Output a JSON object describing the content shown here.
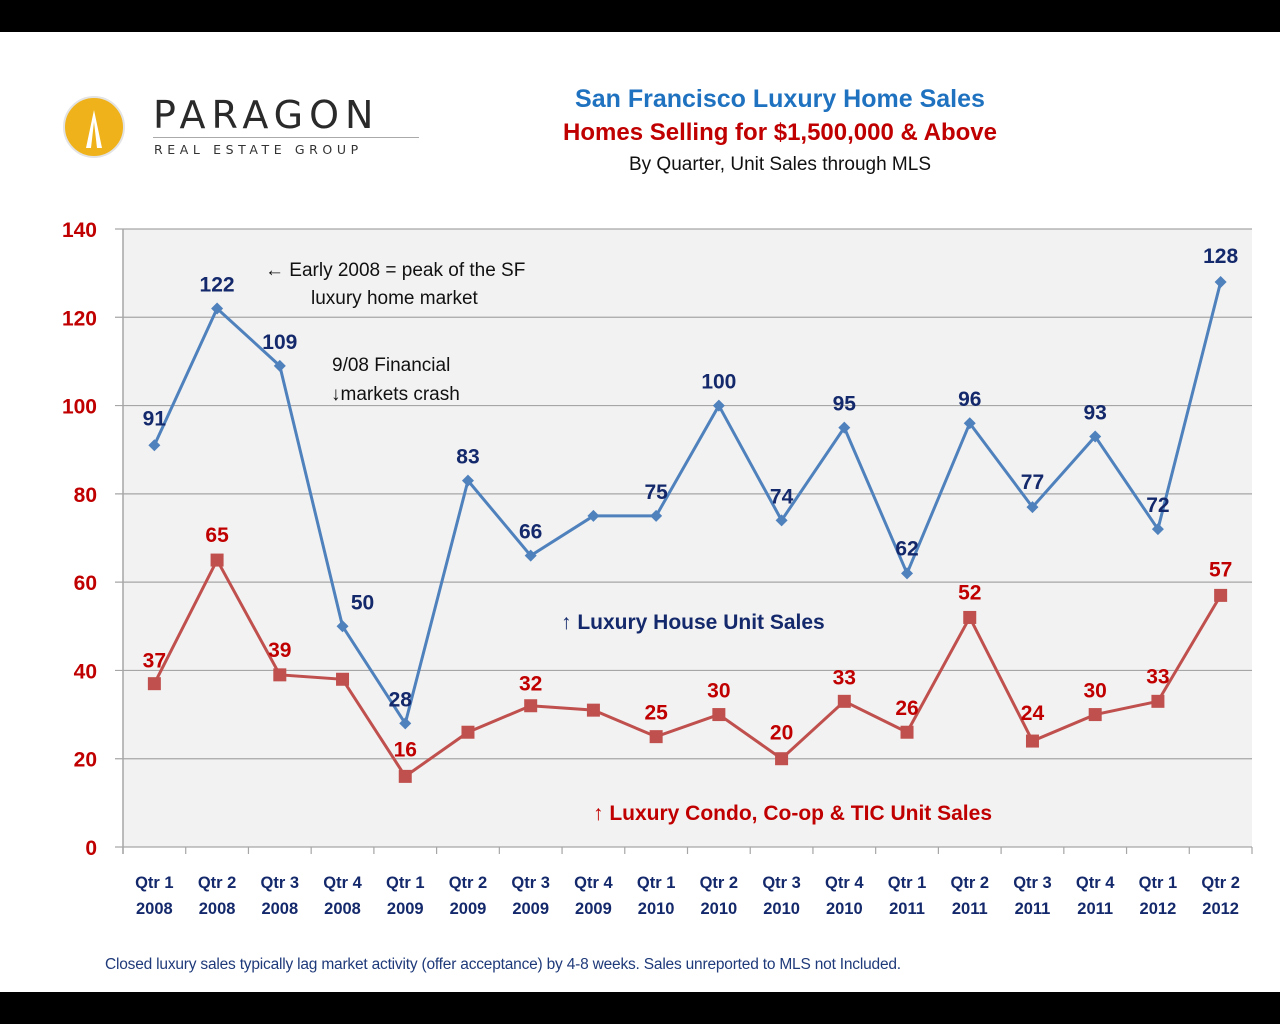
{
  "logo": {
    "name": "PARAGON",
    "tagline": "REAL ESTATE GROUP"
  },
  "colors": {
    "house_line": "#4f81bd",
    "house_label": "#14296b",
    "condo_line": "#c0504d",
    "condo_label": "#c00000",
    "axis_label_y": "#c00000",
    "axis_label_x": "#14296b",
    "plot_bg": "#f2f2f2",
    "grid": "#a6a6a6",
    "title_blue": "#1f72c0",
    "title_red": "#c00000"
  },
  "footnote": "Closed luxury sales typically lag market activity (offer acceptance) by 4-8 weeks. Sales unreported to MLS not Included.",
  "chart_data": {
    "type": "line",
    "title": "San Francisco Luxury Home Sales",
    "subtitle": "Homes Selling for $1,500,000 & Above",
    "subtitle2": "By Quarter, Unit Sales through MLS",
    "xlabel": "",
    "ylabel": "",
    "ylim": [
      0,
      140
    ],
    "yticks": [
      0,
      20,
      40,
      60,
      80,
      100,
      120,
      140
    ],
    "grid": true,
    "categories": [
      [
        "Qtr 1",
        "2008"
      ],
      [
        "Qtr 2",
        "2008"
      ],
      [
        "Qtr 3",
        "2008"
      ],
      [
        "Qtr 4",
        "2008"
      ],
      [
        "Qtr 1",
        "2009"
      ],
      [
        "Qtr 2",
        "2009"
      ],
      [
        "Qtr 3",
        "2009"
      ],
      [
        "Qtr 4",
        "2009"
      ],
      [
        "Qtr 1",
        "2010"
      ],
      [
        "Qtr 2",
        "2010"
      ],
      [
        "Qtr 3",
        "2010"
      ],
      [
        "Qtr 4",
        "2010"
      ],
      [
        "Qtr 1",
        "2011"
      ],
      [
        "Qtr 2",
        "2011"
      ],
      [
        "Qtr 3",
        "2011"
      ],
      [
        "Qtr 4",
        "2011"
      ],
      [
        "Qtr 1",
        "2012"
      ],
      [
        "Qtr 2",
        "2012"
      ]
    ],
    "series": [
      {
        "name": "Luxury House Unit Sales",
        "marker": "diamond",
        "values": [
          91,
          122,
          109,
          50,
          28,
          83,
          66,
          75,
          75,
          100,
          74,
          95,
          62,
          96,
          77,
          93,
          72,
          128
        ],
        "labeled": [
          true,
          true,
          true,
          true,
          true,
          true,
          true,
          false,
          true,
          true,
          true,
          true,
          true,
          true,
          true,
          true,
          true,
          true
        ]
      },
      {
        "name": "Luxury Condo, Co-op & TIC Unit Sales",
        "marker": "square",
        "values": [
          37,
          65,
          39,
          38,
          16,
          26,
          32,
          31,
          25,
          30,
          20,
          33,
          26,
          52,
          24,
          30,
          33,
          57
        ],
        "labeled": [
          true,
          true,
          true,
          false,
          true,
          false,
          true,
          false,
          true,
          true,
          true,
          true,
          true,
          true,
          true,
          true,
          true,
          true
        ]
      }
    ],
    "annotations": [
      {
        "id": "peak",
        "lines": [
          "← Early 2008 = peak of the SF",
          "luxury home market"
        ]
      },
      {
        "id": "crash",
        "lines": [
          "9/08 Financial",
          "↓markets crash"
        ]
      },
      {
        "id": "house-legend",
        "lines": [
          "↑ Luxury House Unit Sales"
        ]
      },
      {
        "id": "condo-legend",
        "lines": [
          "↑ Luxury Condo, Co-op & TIC Unit Sales"
        ]
      }
    ]
  }
}
